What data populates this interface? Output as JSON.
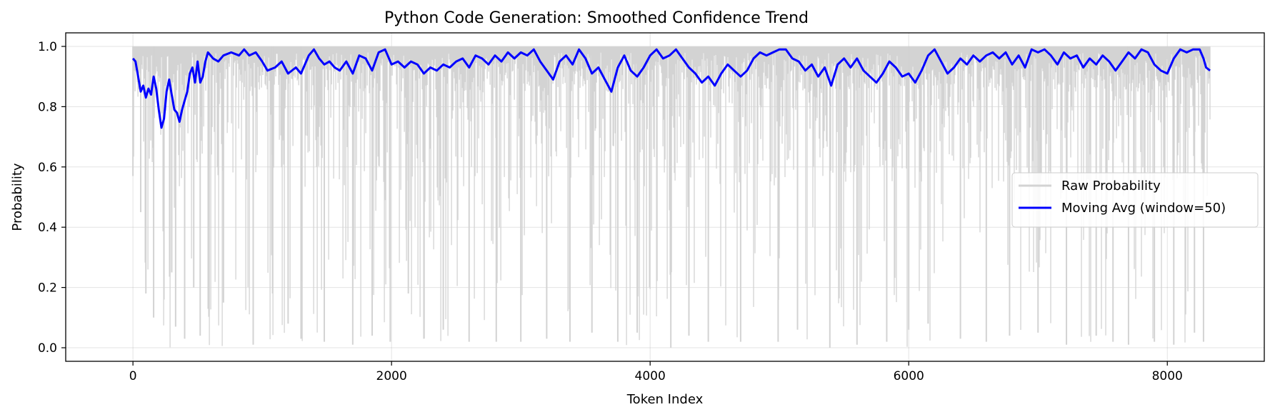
{
  "chart_data": {
    "type": "line",
    "title": "Python Code Generation: Smoothed Confidence Trend",
    "xlabel": "Token Index",
    "ylabel": "Probability",
    "xlim": [
      -520,
      8750
    ],
    "ylim": [
      -0.045,
      1.045
    ],
    "xticks": [
      0,
      2000,
      4000,
      6000,
      8000
    ],
    "yticks": [
      0.0,
      0.2,
      0.4,
      0.6,
      0.8,
      1.0
    ],
    "xtick_labels": [
      "0",
      "2000",
      "4000",
      "6000",
      "8000"
    ],
    "ytick_labels": [
      "0.0",
      "0.2",
      "0.4",
      "0.6",
      "0.8",
      "1.0"
    ],
    "grid": true,
    "legend_position": "center-right",
    "series": [
      {
        "name": "Raw Probability",
        "color": "#d3d3d3",
        "style": "raw-dense",
        "x_range": [
          0,
          8330
        ],
        "n_points": 8330,
        "typical_value": 1.0,
        "dips": [
          {
            "x": 0,
            "y": 0.57
          },
          {
            "x": 60,
            "y": 0.45
          },
          {
            "x": 100,
            "y": 0.18
          },
          {
            "x": 160,
            "y": 0.1
          },
          {
            "x": 240,
            "y": 0.16
          },
          {
            "x": 300,
            "y": 0.25
          },
          {
            "x": 330,
            "y": 0.07
          },
          {
            "x": 400,
            "y": 0.03
          },
          {
            "x": 470,
            "y": 0.2
          },
          {
            "x": 520,
            "y": 0.04
          },
          {
            "x": 700,
            "y": 0.15
          },
          {
            "x": 930,
            "y": 0.01
          },
          {
            "x": 1080,
            "y": 0.18
          },
          {
            "x": 1200,
            "y": 0.08
          },
          {
            "x": 1300,
            "y": 0.03
          },
          {
            "x": 1480,
            "y": 0.02
          },
          {
            "x": 1700,
            "y": 0.01
          },
          {
            "x": 1850,
            "y": 0.04
          },
          {
            "x": 1990,
            "y": 0.02
          },
          {
            "x": 2130,
            "y": 0.18
          },
          {
            "x": 2250,
            "y": 0.03
          },
          {
            "x": 2400,
            "y": 0.06
          },
          {
            "x": 2600,
            "y": 0.02
          },
          {
            "x": 2810,
            "y": 0.02
          },
          {
            "x": 3000,
            "y": 0.02
          },
          {
            "x": 3200,
            "y": 0.03
          },
          {
            "x": 3380,
            "y": 0.02
          },
          {
            "x": 3550,
            "y": 0.05
          },
          {
            "x": 3750,
            "y": 0.02
          },
          {
            "x": 3900,
            "y": 0.05
          },
          {
            "x": 4160,
            "y": 0.0
          },
          {
            "x": 4300,
            "y": 0.04
          },
          {
            "x": 4450,
            "y": 0.02
          },
          {
            "x": 4700,
            "y": 0.02
          },
          {
            "x": 4990,
            "y": 0.02
          },
          {
            "x": 5140,
            "y": 0.06
          },
          {
            "x": 5390,
            "y": 0.0
          },
          {
            "x": 5600,
            "y": 0.01
          },
          {
            "x": 5830,
            "y": 0.02
          },
          {
            "x": 6000,
            "y": 0.06
          },
          {
            "x": 6150,
            "y": 0.08
          },
          {
            "x": 6400,
            "y": 0.03
          },
          {
            "x": 6600,
            "y": 0.02
          },
          {
            "x": 6780,
            "y": 0.04
          },
          {
            "x": 7000,
            "y": 0.05
          },
          {
            "x": 7220,
            "y": 0.01
          },
          {
            "x": 7450,
            "y": 0.04
          },
          {
            "x": 7580,
            "y": 0.02
          },
          {
            "x": 7700,
            "y": 0.01
          },
          {
            "x": 7900,
            "y": 0.02
          },
          {
            "x": 8050,
            "y": 0.01
          },
          {
            "x": 8210,
            "y": 0.05
          },
          {
            "x": 8280,
            "y": 0.02
          }
        ]
      },
      {
        "name": "Moving Avg (window=50)",
        "color": "#0000ff",
        "style": "line",
        "points": [
          [
            0,
            0.96
          ],
          [
            20,
            0.95
          ],
          [
            40,
            0.9
          ],
          [
            60,
            0.85
          ],
          [
            80,
            0.87
          ],
          [
            100,
            0.83
          ],
          [
            120,
            0.86
          ],
          [
            140,
            0.84
          ],
          [
            160,
            0.9
          ],
          [
            180,
            0.86
          ],
          [
            200,
            0.79
          ],
          [
            220,
            0.73
          ],
          [
            240,
            0.76
          ],
          [
            260,
            0.85
          ],
          [
            280,
            0.89
          ],
          [
            300,
            0.84
          ],
          [
            320,
            0.79
          ],
          [
            340,
            0.78
          ],
          [
            360,
            0.75
          ],
          [
            380,
            0.79
          ],
          [
            400,
            0.82
          ],
          [
            420,
            0.85
          ],
          [
            440,
            0.91
          ],
          [
            460,
            0.93
          ],
          [
            480,
            0.88
          ],
          [
            500,
            0.95
          ],
          [
            520,
            0.88
          ],
          [
            540,
            0.9
          ],
          [
            560,
            0.95
          ],
          [
            580,
            0.98
          ],
          [
            620,
            0.96
          ],
          [
            660,
            0.95
          ],
          [
            700,
            0.97
          ],
          [
            760,
            0.98
          ],
          [
            820,
            0.97
          ],
          [
            860,
            0.99
          ],
          [
            900,
            0.97
          ],
          [
            950,
            0.98
          ],
          [
            1000,
            0.95
          ],
          [
            1040,
            0.92
          ],
          [
            1100,
            0.93
          ],
          [
            1150,
            0.95
          ],
          [
            1200,
            0.91
          ],
          [
            1260,
            0.93
          ],
          [
            1300,
            0.91
          ],
          [
            1360,
            0.97
          ],
          [
            1400,
            0.99
          ],
          [
            1440,
            0.96
          ],
          [
            1480,
            0.94
          ],
          [
            1520,
            0.95
          ],
          [
            1560,
            0.93
          ],
          [
            1600,
            0.92
          ],
          [
            1650,
            0.95
          ],
          [
            1700,
            0.91
          ],
          [
            1750,
            0.97
          ],
          [
            1800,
            0.96
          ],
          [
            1850,
            0.92
          ],
          [
            1900,
            0.98
          ],
          [
            1950,
            0.99
          ],
          [
            2000,
            0.94
          ],
          [
            2050,
            0.95
          ],
          [
            2100,
            0.93
          ],
          [
            2150,
            0.95
          ],
          [
            2200,
            0.94
          ],
          [
            2250,
            0.91
          ],
          [
            2300,
            0.93
          ],
          [
            2350,
            0.92
          ],
          [
            2400,
            0.94
          ],
          [
            2450,
            0.93
          ],
          [
            2500,
            0.95
          ],
          [
            2550,
            0.96
          ],
          [
            2600,
            0.93
          ],
          [
            2650,
            0.97
          ],
          [
            2700,
            0.96
          ],
          [
            2750,
            0.94
          ],
          [
            2800,
            0.97
          ],
          [
            2850,
            0.95
          ],
          [
            2900,
            0.98
          ],
          [
            2950,
            0.96
          ],
          [
            3000,
            0.98
          ],
          [
            3050,
            0.97
          ],
          [
            3100,
            0.99
          ],
          [
            3150,
            0.95
          ],
          [
            3200,
            0.92
          ],
          [
            3250,
            0.89
          ],
          [
            3300,
            0.95
          ],
          [
            3350,
            0.97
          ],
          [
            3400,
            0.94
          ],
          [
            3450,
            0.99
          ],
          [
            3500,
            0.96
          ],
          [
            3550,
            0.91
          ],
          [
            3600,
            0.93
          ],
          [
            3650,
            0.89
          ],
          [
            3700,
            0.85
          ],
          [
            3750,
            0.93
          ],
          [
            3800,
            0.97
          ],
          [
            3850,
            0.92
          ],
          [
            3900,
            0.9
          ],
          [
            3950,
            0.93
          ],
          [
            4000,
            0.97
          ],
          [
            4050,
            0.99
          ],
          [
            4100,
            0.96
          ],
          [
            4150,
            0.97
          ],
          [
            4200,
            0.99
          ],
          [
            4250,
            0.96
          ],
          [
            4300,
            0.93
          ],
          [
            4350,
            0.91
          ],
          [
            4400,
            0.88
          ],
          [
            4450,
            0.9
          ],
          [
            4500,
            0.87
          ],
          [
            4550,
            0.91
          ],
          [
            4600,
            0.94
          ],
          [
            4650,
            0.92
          ],
          [
            4700,
            0.9
          ],
          [
            4750,
            0.92
          ],
          [
            4800,
            0.96
          ],
          [
            4850,
            0.98
          ],
          [
            4900,
            0.97
          ],
          [
            4950,
            0.98
          ],
          [
            5000,
            0.99
          ],
          [
            5050,
            0.99
          ],
          [
            5100,
            0.96
          ],
          [
            5150,
            0.95
          ],
          [
            5200,
            0.92
          ],
          [
            5250,
            0.94
          ],
          [
            5300,
            0.9
          ],
          [
            5350,
            0.93
          ],
          [
            5400,
            0.87
          ],
          [
            5450,
            0.94
          ],
          [
            5500,
            0.96
          ],
          [
            5550,
            0.93
          ],
          [
            5600,
            0.96
          ],
          [
            5650,
            0.92
          ],
          [
            5700,
            0.9
          ],
          [
            5750,
            0.88
          ],
          [
            5800,
            0.91
          ],
          [
            5850,
            0.95
          ],
          [
            5900,
            0.93
          ],
          [
            5950,
            0.9
          ],
          [
            6000,
            0.91
          ],
          [
            6050,
            0.88
          ],
          [
            6100,
            0.92
          ],
          [
            6150,
            0.97
          ],
          [
            6200,
            0.99
          ],
          [
            6250,
            0.95
          ],
          [
            6300,
            0.91
          ],
          [
            6350,
            0.93
          ],
          [
            6400,
            0.96
          ],
          [
            6450,
            0.94
          ],
          [
            6500,
            0.97
          ],
          [
            6550,
            0.95
          ],
          [
            6600,
            0.97
          ],
          [
            6650,
            0.98
          ],
          [
            6700,
            0.96
          ],
          [
            6750,
            0.98
          ],
          [
            6800,
            0.94
          ],
          [
            6850,
            0.97
          ],
          [
            6900,
            0.93
          ],
          [
            6950,
            0.99
          ],
          [
            7000,
            0.98
          ],
          [
            7050,
            0.99
          ],
          [
            7100,
            0.97
          ],
          [
            7150,
            0.94
          ],
          [
            7200,
            0.98
          ],
          [
            7250,
            0.96
          ],
          [
            7300,
            0.97
          ],
          [
            7350,
            0.93
          ],
          [
            7400,
            0.96
          ],
          [
            7450,
            0.94
          ],
          [
            7500,
            0.97
          ],
          [
            7550,
            0.95
          ],
          [
            7600,
            0.92
          ],
          [
            7650,
            0.95
          ],
          [
            7700,
            0.98
          ],
          [
            7750,
            0.96
          ],
          [
            7800,
            0.99
          ],
          [
            7850,
            0.98
          ],
          [
            7900,
            0.94
          ],
          [
            7950,
            0.92
          ],
          [
            8000,
            0.91
          ],
          [
            8050,
            0.96
          ],
          [
            8100,
            0.99
          ],
          [
            8150,
            0.98
          ],
          [
            8200,
            0.99
          ],
          [
            8250,
            0.99
          ],
          [
            8280,
            0.96
          ],
          [
            8300,
            0.93
          ],
          [
            8330,
            0.92
          ]
        ]
      }
    ]
  }
}
